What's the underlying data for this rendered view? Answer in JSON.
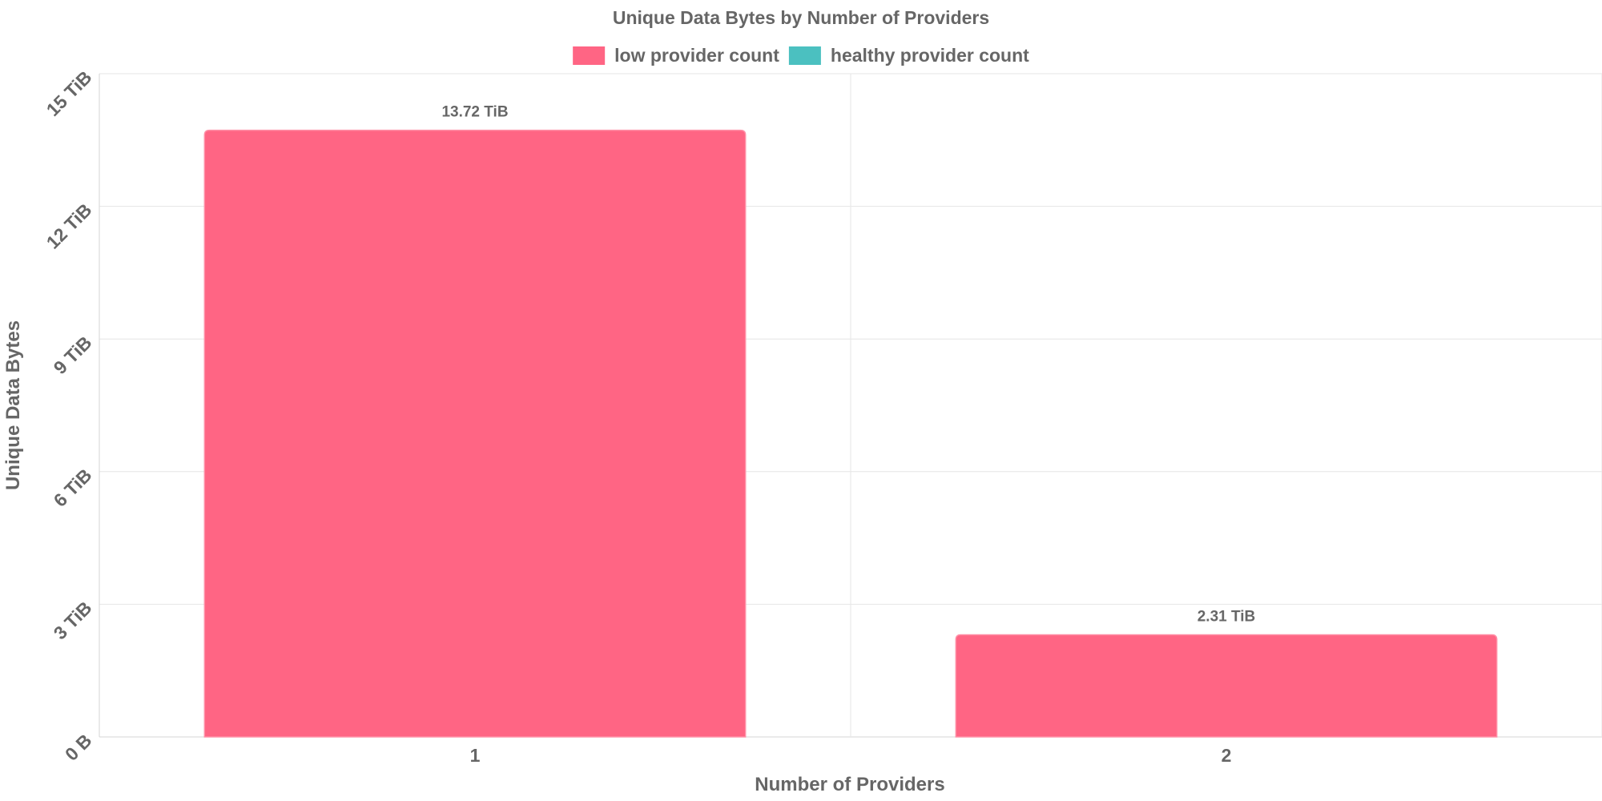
{
  "chart_data": {
    "type": "bar",
    "title": "Unique Data Bytes by Number of Providers",
    "xlabel": "Number of Providers",
    "ylabel": "Unique Data Bytes",
    "categories": [
      "1",
      "2"
    ],
    "series": [
      {
        "name": "low provider count",
        "color": "#ff6584",
        "values": [
          13.72,
          2.31
        ],
        "value_labels": [
          "13.72 TiB",
          "2.31 TiB"
        ]
      },
      {
        "name": "healthy provider count",
        "color": "#4bc0c0",
        "values": [
          0,
          0
        ],
        "value_labels": []
      }
    ],
    "y_unit": "TiB",
    "ylim": [
      0,
      15
    ],
    "y_ticks": [
      {
        "value": 0,
        "label": "0 B"
      },
      {
        "value": 3,
        "label": "3 TiB"
      },
      {
        "value": 6,
        "label": "6 TiB"
      },
      {
        "value": 9,
        "label": "9 TiB"
      },
      {
        "value": 12,
        "label": "12 TiB"
      },
      {
        "value": 15,
        "label": "15 TiB"
      }
    ],
    "grid": true,
    "legend_position": "top-center"
  }
}
